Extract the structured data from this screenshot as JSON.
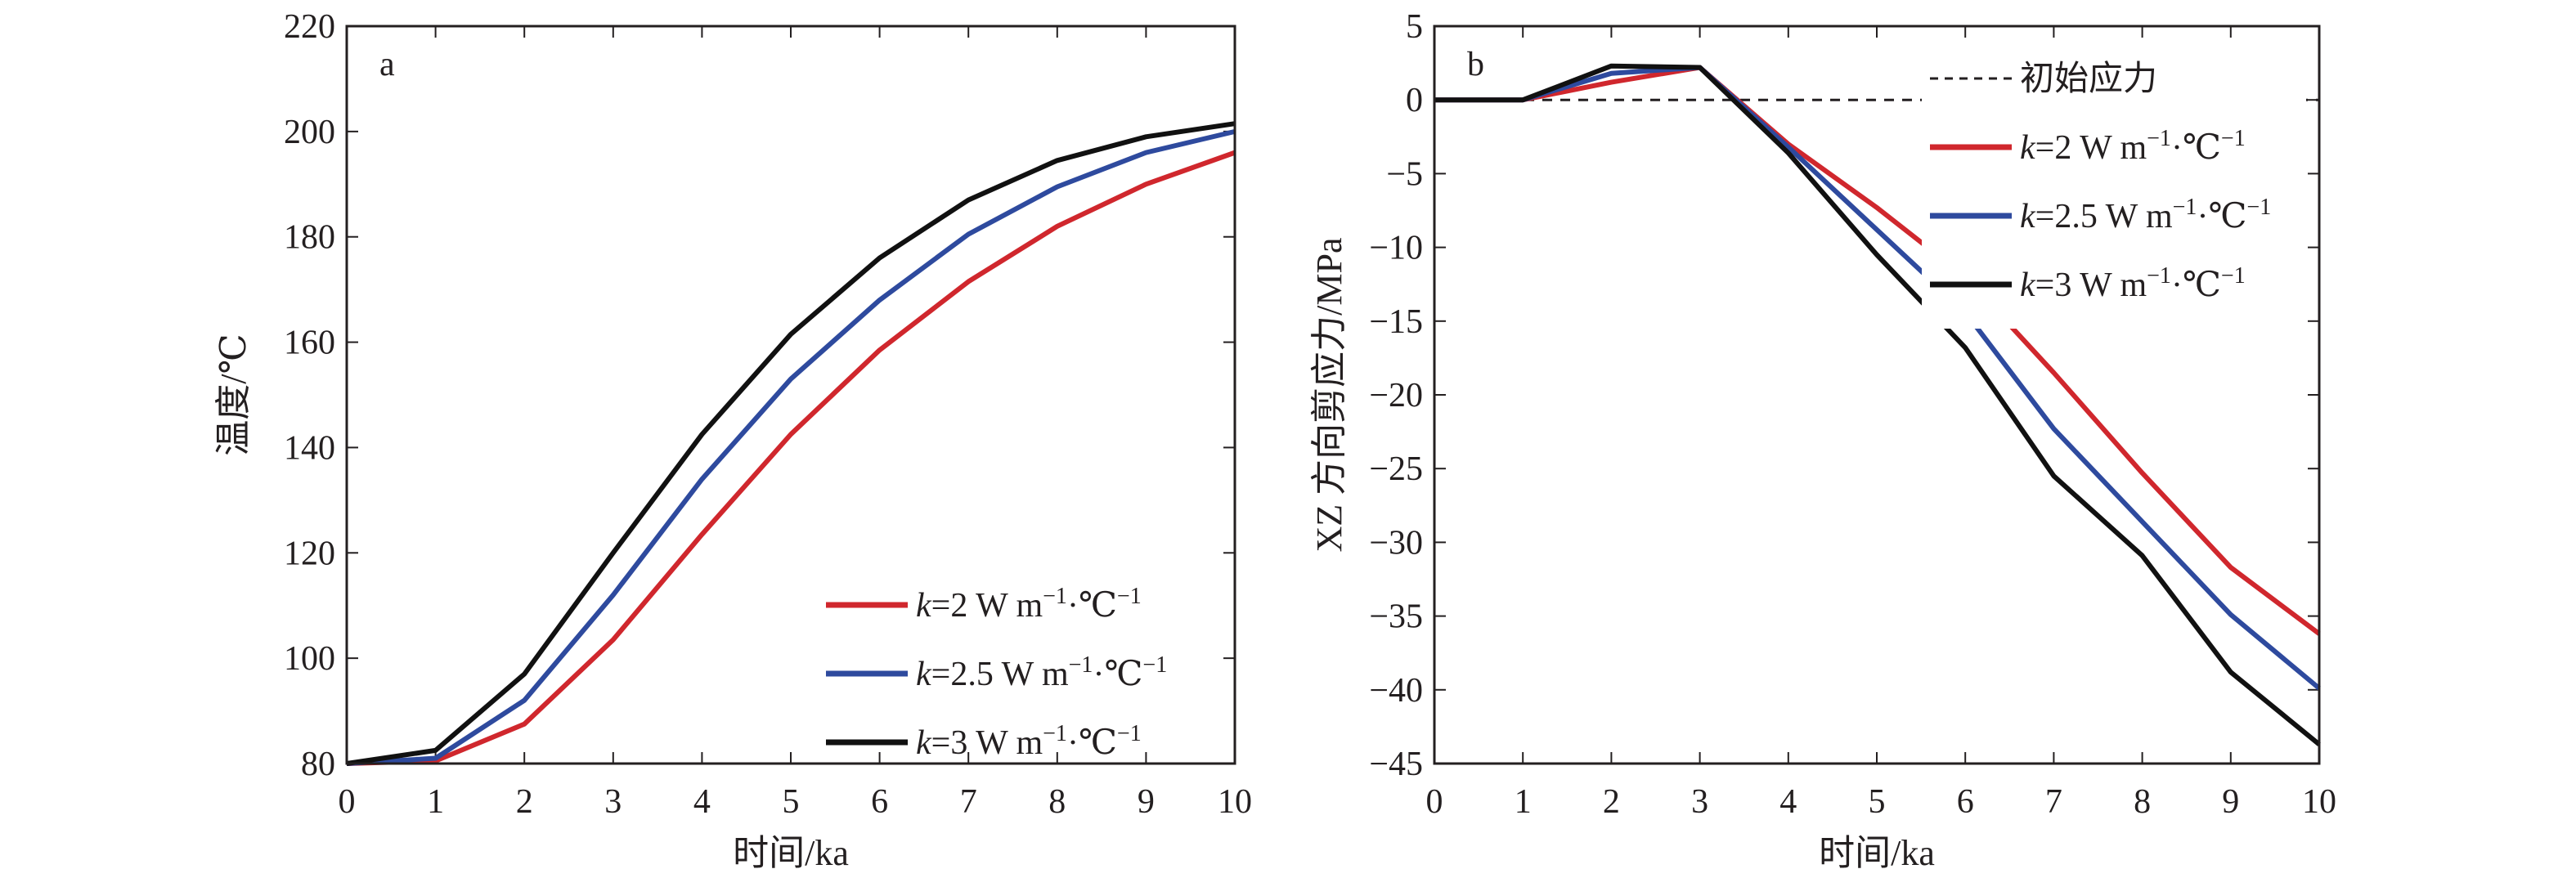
{
  "chart_data": [
    {
      "type": "line",
      "panel_label": "a",
      "xlabel": "时间/ka",
      "ylabel": "温度/℃",
      "xlim": [
        0,
        10
      ],
      "ylim": [
        80,
        220
      ],
      "xticks": [
        0,
        1,
        2,
        3,
        4,
        5,
        6,
        7,
        8,
        9,
        10
      ],
      "yticks": [
        80,
        100,
        120,
        140,
        160,
        180,
        200,
        220
      ],
      "legend_position": "bottom-right",
      "x": [
        0,
        1,
        2,
        3,
        4,
        5,
        6,
        7,
        8,
        9,
        10
      ],
      "series": [
        {
          "name": "k=2 W m⁻¹·℃⁻¹",
          "k": "k",
          "rest": "=2 W m",
          "color": "#d0272d",
          "values": [
            80,
            80.5,
            87.5,
            103.5,
            123.5,
            142.5,
            158.5,
            171.5,
            182,
            190,
            196
          ]
        },
        {
          "name": "k=2.5 W m⁻¹·℃⁻¹",
          "k": "k",
          "rest": "=2.5 W m",
          "color": "#2e4a9e",
          "values": [
            80,
            81,
            92,
            112,
            134,
            153,
            168,
            180.5,
            189.5,
            196,
            200
          ]
        },
        {
          "name": "k=3 W m⁻¹·℃⁻¹",
          "k": "k",
          "rest": "=3 W m",
          "color": "#111111",
          "values": [
            80,
            82.5,
            97,
            120,
            142.5,
            161.5,
            176,
            187,
            194.5,
            199,
            201.5
          ]
        }
      ]
    },
    {
      "type": "line",
      "panel_label": "b",
      "xlabel": "时间/ka",
      "ylabel": "XZ 方向剪应力/MPa",
      "xlim": [
        0,
        10
      ],
      "ylim": [
        -45,
        5
      ],
      "xticks": [
        0,
        1,
        2,
        3,
        4,
        5,
        6,
        7,
        8,
        9,
        10
      ],
      "yticks": [
        5,
        0,
        -5,
        -10,
        -15,
        -20,
        -25,
        -30,
        -35,
        -40,
        -45
      ],
      "legend_position": "top-right",
      "reference_line": {
        "name": "初始应力",
        "value": 0,
        "style": "dashed"
      },
      "x": [
        0,
        1,
        2,
        3,
        4,
        5,
        6,
        7,
        8,
        9,
        10
      ],
      "series": [
        {
          "name": "k=2 W m⁻¹·℃⁻¹",
          "k": "k",
          "rest": "=2 W m",
          "color": "#d0272d",
          "values": [
            0,
            0,
            1.2,
            2.2,
            -3.0,
            -7.3,
            -12.0,
            -18.5,
            -25.3,
            -31.7,
            -36.2
          ]
        },
        {
          "name": "k=2.5 W m⁻¹·℃⁻¹",
          "k": "k",
          "rest": "=2.5 W m",
          "color": "#2e4a9e",
          "values": [
            0,
            0,
            1.8,
            2.2,
            -3.2,
            -8.8,
            -14.4,
            -22.3,
            -28.6,
            -34.9,
            -39.9
          ]
        },
        {
          "name": "k=3 W m⁻¹·℃⁻¹",
          "k": "k",
          "rest": "=3 W m",
          "color": "#111111",
          "values": [
            0,
            0,
            2.3,
            2.2,
            -3.6,
            -10.5,
            -16.8,
            -25.5,
            -30.9,
            -38.8,
            -43.7
          ]
        }
      ]
    }
  ],
  "unit_suffix": {
    "sup1": "−1",
    "dot": "·",
    "degc": "℃",
    "sup2": "−1"
  }
}
